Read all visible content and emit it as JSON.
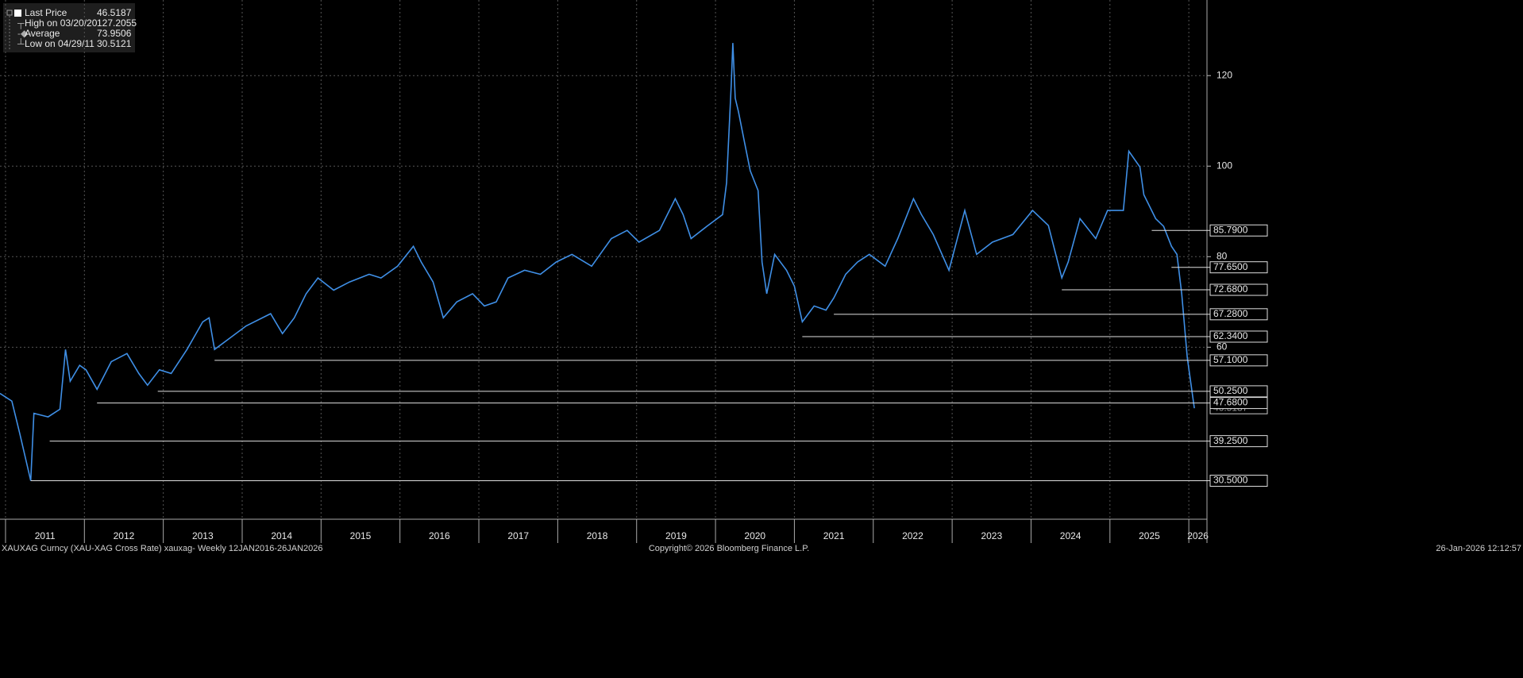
{
  "chart_data": {
    "type": "line",
    "series": [
      {
        "name": "Last Price",
        "color": "#3f8fe6",
        "x": [
          2010.93,
          2011.08,
          2011.18,
          2011.32,
          2011.36,
          2011.54,
          2011.69,
          2011.76,
          2011.82,
          2011.94,
          2012.02,
          2012.16,
          2012.34,
          2012.54,
          2012.69,
          2012.8,
          2012.95,
          2013.1,
          2013.3,
          2013.5,
          2013.58,
          2013.65,
          2013.85,
          2014.05,
          2014.36,
          2014.51,
          2014.66,
          2014.81,
          2014.96,
          2015.16,
          2015.36,
          2015.61,
          2015.76,
          2015.97,
          2016.17,
          2016.27,
          2016.42,
          2016.55,
          2016.72,
          2016.92,
          2017.07,
          2017.22,
          2017.37,
          2017.58,
          2017.78,
          2017.98,
          2018.18,
          2018.43,
          2018.68,
          2018.88,
          2019.03,
          2019.29,
          2019.49,
          2019.59,
          2019.69,
          2019.89,
          2020.09,
          2020.14,
          2020.2,
          2020.22,
          2020.25,
          2020.29,
          2020.37,
          2020.44,
          2020.54,
          2020.59,
          2020.65,
          2020.75,
          2020.9,
          2021.0,
          2021.1,
          2021.25,
          2021.4,
          2021.5,
          2021.65,
          2021.8,
          2021.95,
          2022.15,
          2022.31,
          2022.51,
          2022.61,
          2022.76,
          2022.96,
          2023.16,
          2023.31,
          2023.51,
          2023.77,
          2024.02,
          2024.22,
          2024.39,
          2024.47,
          2024.62,
          2024.82,
          2024.97,
          2025.17,
          2025.24,
          2025.38,
          2025.43,
          2025.58,
          2025.68,
          2025.78,
          2025.85,
          2025.91,
          2025.98,
          2026.07
        ],
        "values": [
          49.8,
          48.1,
          41,
          30.5121,
          45.4,
          44.6,
          46.3,
          59.5,
          52.5,
          56,
          55,
          50.7,
          56.8,
          58.6,
          54.2,
          51.6,
          55,
          54.2,
          59.5,
          65.6,
          66.5,
          59.5,
          62.1,
          64.7,
          67.4,
          63,
          66.5,
          71.8,
          75.3,
          72.6,
          74.4,
          76.1,
          75.3,
          77.9,
          82.3,
          78.8,
          74.4,
          66.5,
          70,
          71.8,
          69.1,
          70,
          75.3,
          77,
          76.1,
          78.8,
          80.5,
          77.9,
          84,
          85.8,
          83.2,
          85.8,
          92.8,
          89.3,
          84,
          86.7,
          89.3,
          96.3,
          118,
          127.2055,
          115,
          112.1,
          105.1,
          99,
          94.6,
          78.8,
          71.8,
          80.5,
          77,
          73.5,
          65.6,
          69.1,
          68.2,
          70.9,
          76.1,
          78.8,
          80.5,
          77.9,
          84,
          92.8,
          89.3,
          84.9,
          77,
          90.2,
          80.5,
          83.2,
          84.9,
          90.2,
          86.9,
          75.3,
          78.8,
          88.4,
          84,
          90.2,
          90.2,
          103.3,
          99.8,
          93.7,
          88.4,
          86.7,
          82.3,
          80.5,
          71.8,
          57.7,
          46.5187
        ]
      }
    ],
    "last_price": 46.5187,
    "stats": [
      {
        "name": "High on 03/20/20",
        "value": 127.2055
      },
      {
        "name": "Average",
        "value": 73.9506
      },
      {
        "name": "Low on 04/29/11",
        "value": 30.5121
      }
    ],
    "levels": [
      {
        "value": 85.79,
        "label": "85.7900",
        "start": 2025.53
      },
      {
        "value": 77.65,
        "label": "77.6500",
        "start": 2025.78
      },
      {
        "value": 72.68,
        "label": "72.6800",
        "start": 2024.39
      },
      {
        "value": 67.28,
        "label": "67.2800",
        "start": 2021.5
      },
      {
        "value": 62.34,
        "label": "62.3400",
        "start": 2021.1
      },
      {
        "value": 57.1,
        "label": "57.1000",
        "start": 2013.65
      },
      {
        "value": 50.25,
        "label": "50.2500",
        "start": 2012.93
      },
      {
        "value": 47.68,
        "label": "47.6800",
        "start": 2012.16
      },
      {
        "value": 39.25,
        "label": "39.2500",
        "start": 2011.56
      },
      {
        "value": 30.5,
        "label": "30.5000",
        "start": 2011.32
      }
    ],
    "xlim": [
      2010.93,
      2026.23
    ],
    "xticks": [
      2011,
      2012,
      2013,
      2014,
      2015,
      2016,
      2017,
      2018,
      2019,
      2020,
      2021,
      2022,
      2023,
      2024,
      2025,
      2026
    ],
    "ylim": [
      22,
      136.7
    ],
    "yticks": [
      60,
      80,
      100,
      120
    ],
    "grid": true,
    "footer_left": "XAUXAG Curncy (XAU-XAG Cross Rate) xauxag- Weekly 12JAN2016-26JAN2026",
    "footer_center": "Copyright© 2026 Bloomberg Finance L.P.",
    "footer_right": "26-Jan-2026 12:12:57"
  }
}
